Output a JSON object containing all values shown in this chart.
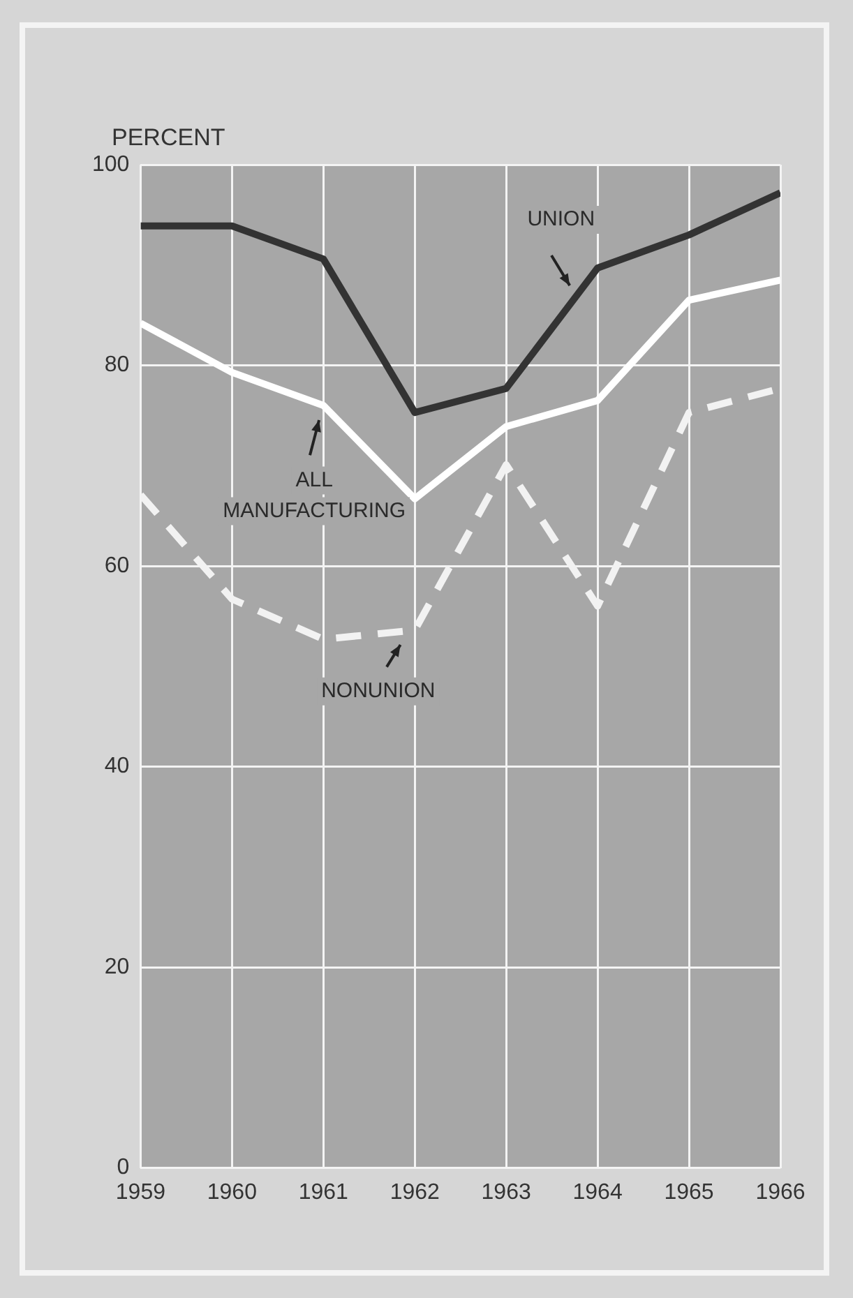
{
  "chart_data": {
    "type": "line",
    "ylabel": "PERCENT",
    "x": [
      1959,
      1960,
      1961,
      1962,
      1963,
      1964,
      1965,
      1966
    ],
    "xlim": [
      1959,
      1966
    ],
    "xticks": [
      1959,
      1960,
      1961,
      1962,
      1963,
      1964,
      1965,
      1966
    ],
    "ylim": [
      0,
      100
    ],
    "yticks": [
      0,
      20,
      40,
      60,
      80,
      100
    ],
    "grid": true,
    "legend": false,
    "marker": "none",
    "series": [
      {
        "name": "UNION",
        "color": "#333333",
        "line_style": "solid",
        "values": [
          93.9,
          93.9,
          90.6,
          75.3,
          77.7,
          89.7,
          93.0,
          97.2
        ]
      },
      {
        "name": "ALL MANUFACTURING",
        "color": "#ffffff",
        "line_style": "solid",
        "values": [
          84.2,
          79.3,
          76.0,
          66.7,
          73.9,
          76.5,
          86.5,
          88.5
        ]
      },
      {
        "name": "NONUNION",
        "color": "#f2f2f2",
        "line_style": "dashed",
        "values": [
          67.1,
          56.7,
          52.7,
          53.6,
          70.1,
          56.0,
          75.3,
          77.7
        ]
      }
    ]
  }
}
